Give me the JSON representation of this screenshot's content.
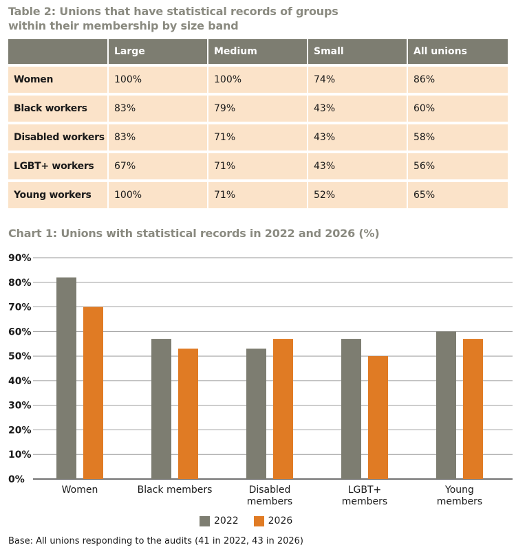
{
  "table": {
    "title_line1": "Table 2: Unions that have statistical records of groups",
    "title_line2": "within their membership by size band",
    "headers": [
      "",
      "Large",
      "Medium",
      "Small",
      "All unions"
    ],
    "rows": [
      [
        "Women",
        "100%",
        "100%",
        "74%",
        "86%"
      ],
      [
        "Black workers",
        "83%",
        "79%",
        "43%",
        "60%"
      ],
      [
        "Disabled workers",
        "83%",
        "71%",
        "43%",
        "58%"
      ],
      [
        "LGBT+ workers",
        "67%",
        "71%",
        "43%",
        "56%"
      ],
      [
        "Young workers",
        "100%",
        "71%",
        "52%",
        "65%"
      ]
    ]
  },
  "chart_data": {
    "type": "bar",
    "title": "Chart 1: Unions with statistical records in 2022 and 2026 (%)",
    "categories": [
      [
        "Women"
      ],
      [
        "Black members"
      ],
      [
        "Disabled",
        "members"
      ],
      [
        "LGBT+",
        "members"
      ],
      [
        "Young",
        "members"
      ]
    ],
    "series": [
      {
        "name": "2022",
        "color": "#7d7d71",
        "values": [
          82,
          57,
          53,
          57,
          60
        ]
      },
      {
        "name": "2026",
        "color": "#e07b24",
        "values": [
          70,
          53,
          57,
          50,
          57
        ]
      }
    ],
    "ylim": [
      0,
      90
    ],
    "yticks": [
      "0%",
      "10%",
      "20%",
      "30%",
      "40%",
      "50%",
      "60%",
      "70%",
      "80%",
      "90%"
    ],
    "grid": true,
    "legend_position": "bottom-center"
  },
  "footer": {
    "base_note": "Base: All unions responding to the audits (41 in 2022, 43 in 2026)"
  }
}
